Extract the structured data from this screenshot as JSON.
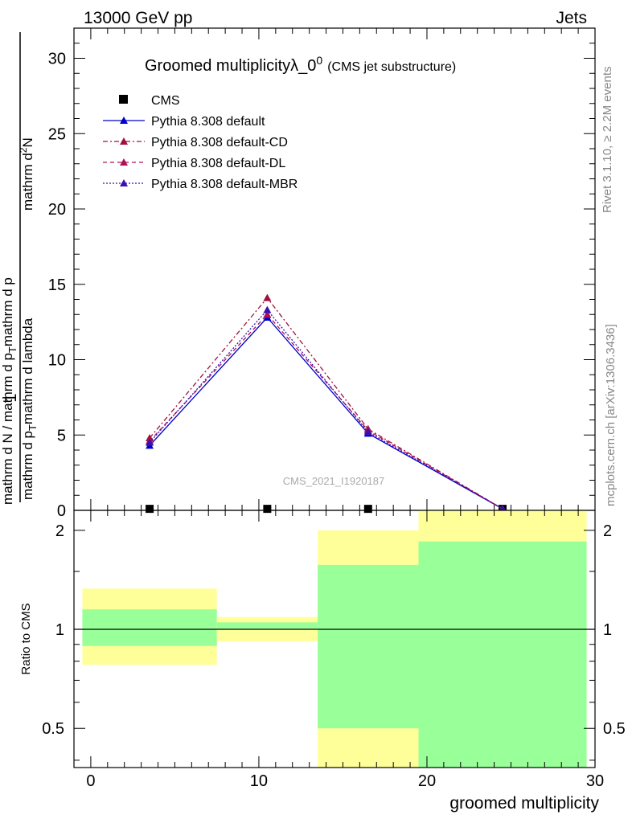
{
  "header": {
    "left": "13000 GeV pp",
    "right": "Jets"
  },
  "side_labels": {
    "rivet": "Rivet 3.1.10, ≥ 2.2M events",
    "source": "mcplots.cern.ch [arXiv:1306.3436]"
  },
  "watermark": "CMS_2021_I1920187",
  "colors": {
    "cms": "#000000",
    "default": "#0000cc",
    "cd": "#a0103c",
    "dl": "#b0105a",
    "mbr": "#3a10b0",
    "band_inner": "#99ff99",
    "band_outer": "#ffff99"
  },
  "chart_data": [
    {
      "type": "line",
      "title": "Groomed multiplicityλ_0",
      "title_sup": "0",
      "title_suffix": "(CMS jet substructure)",
      "ylabel_fraction_top": "1",
      "ylabel_num": "mathrm d²N",
      "ylabel_den": "mathrm d N / mathrm d p_T mathrm d p_T mathrm d lambda",
      "ylabel_parts": {
        "num_a": "mathrm d",
        "num_sup": "2",
        "num_b": "N",
        "den_a": "mathrm d p",
        "den_sub": "T",
        "den_b": "mathrm d lambda"
      },
      "ylabel_left_den": "mathrm d N / mathrm d p",
      "ylabel_left_sub": "T",
      "ylabel_left_tail": "mathrm d p",
      "ylim": [
        0,
        32
      ],
      "xlim": [
        -1,
        30
      ],
      "yticks": [
        0,
        5,
        10,
        15,
        20,
        25,
        30
      ],
      "legend_position": "top-left",
      "series": [
        {
          "name": "CMS",
          "key": "cms",
          "style": "square",
          "x": [
            3.5,
            10.5,
            16.5,
            24.5
          ],
          "y": [
            0.1,
            0.1,
            0.1,
            0.1
          ]
        },
        {
          "name": "Pythia 8.308 default",
          "key": "default",
          "style": "solid",
          "x": [
            3.5,
            10.5,
            16.5,
            24.5
          ],
          "y": [
            4.3,
            12.8,
            5.1,
            0.1
          ]
        },
        {
          "name": "Pythia 8.308 default-CD",
          "key": "cd",
          "style": "dashdot",
          "x": [
            3.5,
            10.5,
            16.5,
            24.5
          ],
          "y": [
            4.8,
            14.1,
            5.4,
            0.1
          ]
        },
        {
          "name": "Pythia 8.308 default-DL",
          "key": "dl",
          "style": "dashed",
          "x": [
            3.5,
            10.5,
            16.5,
            24.5
          ],
          "y": [
            4.6,
            13.0,
            5.3,
            0.1
          ]
        },
        {
          "name": "Pythia 8.308 default-MBR",
          "key": "mbr",
          "style": "dotted",
          "x": [
            3.5,
            10.5,
            16.5,
            24.5
          ],
          "y": [
            4.5,
            13.3,
            5.2,
            0.1
          ]
        }
      ]
    },
    {
      "type": "area",
      "ylabel": "Ratio to CMS",
      "xlabel": "groomed multiplicity",
      "scale": "log",
      "ylim": [
        0.38,
        2.3
      ],
      "xlim": [
        -1,
        30
      ],
      "xticks": [
        0,
        10,
        20,
        30
      ],
      "yticks": [
        0.5,
        1,
        2
      ],
      "reference": 1,
      "bins": [
        {
          "lo": -0.5,
          "hi": 7.5,
          "inner": [
            0.89,
            1.15
          ],
          "outer": [
            0.78,
            1.33
          ]
        },
        {
          "lo": 7.5,
          "hi": 13.5,
          "inner": [
            1.0,
            1.05
          ],
          "outer": [
            0.92,
            1.09
          ]
        },
        {
          "lo": 13.5,
          "hi": 19.5,
          "inner": [
            0.5,
            1.57
          ],
          "outer": [
            0.38,
            2.0
          ]
        },
        {
          "lo": 19.5,
          "hi": 29.5,
          "inner": [
            0.38,
            1.85
          ],
          "outer": [
            0.38,
            2.3
          ]
        }
      ]
    }
  ]
}
